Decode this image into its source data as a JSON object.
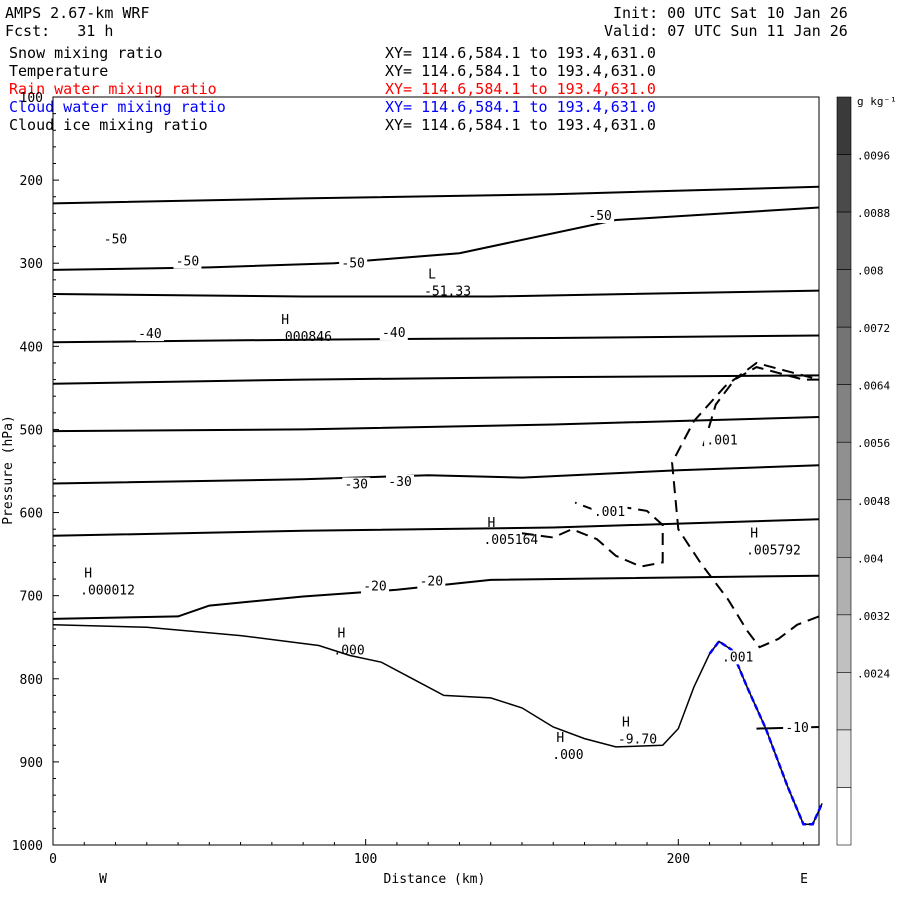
{
  "header": {
    "model": "AMPS 2.67-km WRF",
    "forecast": "Fcst:   31 h",
    "init": "Init: 00 UTC Sat 10 Jan 26",
    "valid": "Valid: 07 UTC Sun 11 Jan 26"
  },
  "fields": [
    {
      "name": "Snow mixing ratio",
      "xy": "XY= 114.6,584.1 to 193.4,631.0",
      "color": "#000000"
    },
    {
      "name": "Temperature",
      "xy": "XY= 114.6,584.1 to 193.4,631.0",
      "color": "#000000"
    },
    {
      "name": "Rain water mixing ratio",
      "xy": "XY= 114.6,584.1 to 193.4,631.0",
      "color": "#ff0000"
    },
    {
      "name": "Cloud water mixing ratio",
      "xy": "XY= 114.6,584.1 to 193.4,631.0",
      "color": "#0000ff"
    },
    {
      "name": "Cloud ice mixing ratio",
      "xy": "XY= 114.6,584.1 to 193.4,631.0",
      "color": "#000000"
    }
  ],
  "chart_data": {
    "type": "line",
    "xlabel": "Distance (km)",
    "ylabel": "Pressure (hPa)",
    "xlim": [
      0,
      245
    ],
    "ylim": [
      100,
      1000
    ],
    "xticks": [
      0,
      100,
      200
    ],
    "yticks": [
      100,
      200,
      300,
      400,
      500,
      600,
      700,
      800,
      900,
      1000
    ],
    "x_ends": {
      "left": "W",
      "right": "E"
    },
    "terrain": [
      [
        0,
        735
      ],
      [
        30,
        738
      ],
      [
        60,
        748
      ],
      [
        85,
        760
      ],
      [
        95,
        772
      ],
      [
        105,
        780
      ],
      [
        115,
        800
      ],
      [
        125,
        820
      ],
      [
        140,
        823
      ],
      [
        150,
        835
      ],
      [
        160,
        858
      ],
      [
        170,
        872
      ],
      [
        180,
        882
      ],
      [
        195,
        880
      ],
      [
        200,
        860
      ],
      [
        205,
        810
      ],
      [
        210,
        770
      ],
      [
        213,
        755
      ],
      [
        217,
        765
      ],
      [
        222,
        810
      ],
      [
        228,
        860
      ],
      [
        235,
        930
      ],
      [
        240,
        975
      ],
      [
        243,
        975
      ],
      [
        246,
        950
      ]
    ],
    "cloud_water_line": [
      [
        210,
        770
      ],
      [
        213,
        755
      ],
      [
        217,
        765
      ],
      [
        222,
        810
      ],
      [
        228,
        860
      ],
      [
        235,
        930
      ],
      [
        240,
        975
      ],
      [
        243,
        975
      ],
      [
        246,
        950
      ]
    ],
    "temperature_contours": [
      {
        "label": "",
        "points": [
          [
            0,
            228
          ],
          [
            80,
            222
          ],
          [
            160,
            217
          ],
          [
            245,
            208
          ]
        ]
      },
      {
        "label": "-50",
        "points": [
          [
            0,
            308
          ],
          [
            50,
            305
          ],
          [
            90,
            300
          ],
          [
            130,
            288
          ],
          [
            180,
            248
          ],
          [
            245,
            233
          ]
        ]
      },
      {
        "label": "-50",
        "points": [
          [
            0,
            337
          ],
          [
            80,
            340
          ],
          [
            140,
            340
          ],
          [
            245,
            333
          ]
        ]
      },
      {
        "label": "",
        "points": [
          [
            0,
            395
          ],
          [
            80,
            392
          ],
          [
            160,
            390
          ],
          [
            245,
            387
          ]
        ]
      },
      {
        "label": "-40",
        "points": [
          [
            0,
            445
          ],
          [
            80,
            440
          ],
          [
            160,
            437
          ],
          [
            245,
            435
          ]
        ]
      },
      {
        "label": "",
        "points": [
          [
            0,
            502
          ],
          [
            80,
            500
          ],
          [
            160,
            494
          ],
          [
            245,
            485
          ]
        ]
      },
      {
        "label": "-30",
        "points": [
          [
            0,
            565
          ],
          [
            80,
            560
          ],
          [
            120,
            555
          ],
          [
            150,
            558
          ],
          [
            200,
            549
          ],
          [
            245,
            543
          ]
        ]
      },
      {
        "label": "",
        "points": [
          [
            0,
            628
          ],
          [
            80,
            622
          ],
          [
            160,
            618
          ],
          [
            245,
            608
          ]
        ]
      },
      {
        "label": "-20",
        "points": [
          [
            0,
            728
          ],
          [
            40,
            725
          ],
          [
            50,
            712
          ],
          [
            80,
            701
          ],
          [
            110,
            693
          ],
          [
            140,
            681
          ],
          [
            245,
            676
          ]
        ]
      },
      {
        "label": "-10",
        "points": [
          [
            225,
            860
          ],
          [
            245,
            858
          ]
        ]
      }
    ],
    "temperature_labels": [
      {
        "x": 20,
        "p": 270,
        "text": "-50"
      },
      {
        "x": 175,
        "p": 242,
        "text": "-50"
      },
      {
        "x": 43,
        "p": 297,
        "text": "-50"
      },
      {
        "x": 96,
        "p": 299,
        "text": "-50"
      },
      {
        "x": 31,
        "p": 384,
        "text": "-40"
      },
      {
        "x": 109,
        "p": 383,
        "text": "-40"
      },
      {
        "x": 97,
        "p": 565,
        "text": "-30"
      },
      {
        "x": 111,
        "p": 562,
        "text": "-30"
      },
      {
        "x": 103,
        "p": 688,
        "text": "-20"
      },
      {
        "x": 121,
        "p": 682,
        "text": "-20"
      },
      {
        "x": 238,
        "p": 858,
        "text": "-10"
      }
    ],
    "ice_contours": [
      {
        "label": ".001",
        "points": [
          [
            150,
            625
          ],
          [
            160,
            630
          ],
          [
            166,
            620
          ],
          [
            174,
            632
          ],
          [
            180,
            652
          ],
          [
            188,
            665
          ],
          [
            195,
            660
          ],
          [
            195,
            615
          ],
          [
            190,
            598
          ],
          [
            180,
            592
          ],
          [
            174,
            598
          ],
          [
            167,
            588
          ]
        ]
      },
      {
        "label": ".001",
        "points": [
          [
            208,
            520
          ],
          [
            212,
            470
          ],
          [
            218,
            440
          ],
          [
            225,
            425
          ],
          [
            240,
            440
          ],
          [
            245,
            440
          ],
          [
            235,
            430
          ],
          [
            225,
            420
          ],
          [
            215,
            448
          ],
          [
            205,
            490
          ],
          [
            198,
            540
          ],
          [
            200,
            620
          ],
          [
            207,
            660
          ],
          [
            216,
            705
          ],
          [
            222,
            742
          ],
          [
            226,
            762
          ],
          [
            232,
            752
          ],
          [
            238,
            735
          ],
          [
            245,
            725
          ]
        ]
      }
    ],
    "ice_labels": [
      {
        "x": 178,
        "p": 598,
        "text": ".001"
      },
      {
        "x": 214,
        "p": 512,
        "text": ".001"
      },
      {
        "x": 219,
        "p": 773,
        "text": ".001"
      }
    ],
    "extrema": [
      {
        "x": 127,
        "p": 323,
        "mark": "L",
        "value": "-51.33"
      },
      {
        "x": 80,
        "p": 378,
        "mark": "H",
        "value": ".000846"
      },
      {
        "x": 146,
        "p": 622,
        "mark": "H",
        "value": ".005164"
      },
      {
        "x": 230,
        "p": 635,
        "mark": "H",
        "value": ".005792"
      },
      {
        "x": 17,
        "p": 683,
        "mark": "H",
        "value": ".000012"
      },
      {
        "x": 98,
        "p": 755,
        "mark": "H",
        "value": ".000"
      },
      {
        "x": 168,
        "p": 881,
        "mark": "H",
        "value": ".000"
      },
      {
        "x": 189,
        "p": 862,
        "mark": "H",
        "value": "-9.70"
      }
    ],
    "colorbar": {
      "unit": "g kg⁻¹",
      "labels": [
        ".0096",
        ".0088",
        ".008",
        ".0072",
        ".0064",
        ".0056",
        ".0048",
        ".004",
        ".0032",
        ".0024"
      ],
      "colors": [
        "#3a3a3a",
        "#4a4a4a",
        "#585858",
        "#666666",
        "#747474",
        "#828282",
        "#909090",
        "#a0a0a0",
        "#b0b0b0",
        "#c0c0c0",
        "#d0d0d0",
        "#e0e0e0",
        "#ffffff"
      ]
    }
  }
}
